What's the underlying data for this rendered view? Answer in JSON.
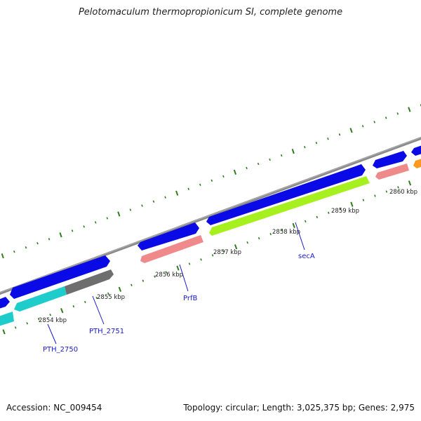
{
  "title": "Pelotomaculum thermopropionicum SI, complete genome",
  "footer": {
    "accession": "Accession: NC_009454",
    "summary": "Topology: circular; Length: 3,025,375 bp; Genes: 2,975"
  },
  "colors": {
    "backbone": "#8a8a8a",
    "ticks": "#2e7d1e",
    "gene_blue": "#0a0ae6",
    "cyan": "#1ecccc",
    "gray": "#6e6e6e",
    "salmon": "#f08a8a",
    "lime": "#a6f01e",
    "orange": "#ff9a1e",
    "label": "#1a1acc"
  },
  "kbp_labels": [
    "2854 kbp",
    "2855 kbp",
    "2856 kbp",
    "2857 kbp",
    "2858 kbp",
    "2859 kbp",
    "2860 kbp"
  ],
  "gene_labels": [
    "PTH_2750",
    "PTH_2751",
    "PrfB",
    "secA"
  ]
}
